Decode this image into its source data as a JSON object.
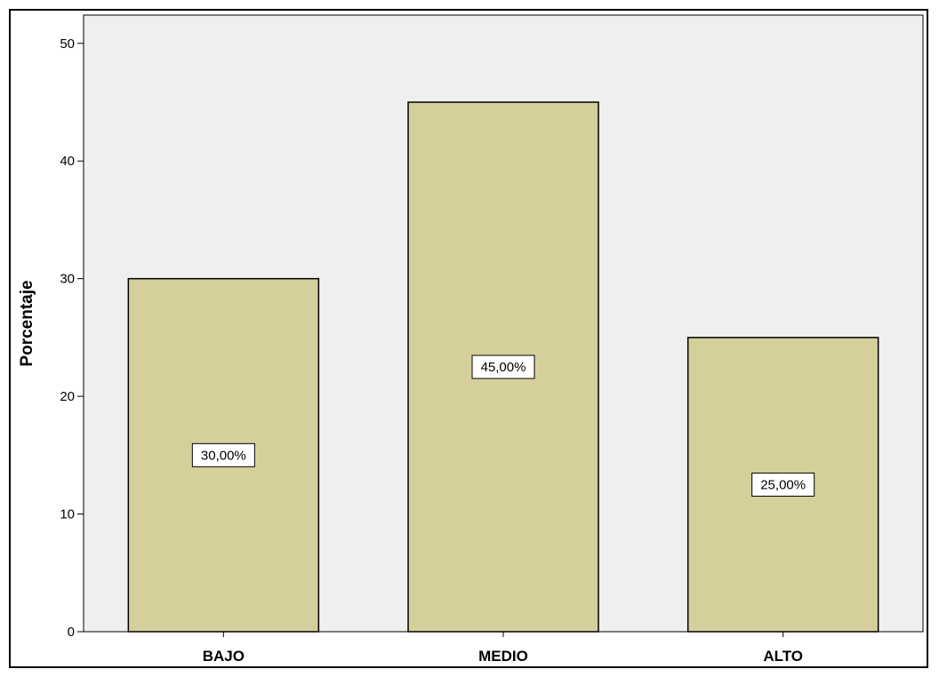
{
  "chart_data": {
    "type": "bar",
    "title": "",
    "xlabel": "",
    "ylabel": "Porcentaje",
    "categories": [
      "BAJO",
      "MEDIO",
      "ALTO"
    ],
    "values": [
      30,
      45,
      25
    ],
    "data_labels": [
      "30,00%",
      "45,00%",
      "25,00%"
    ],
    "ylim": [
      0,
      50
    ],
    "yticks": [
      0,
      10,
      20,
      30,
      40,
      50
    ],
    "ytick_labels": [
      "0",
      "10",
      "20",
      "30",
      "40",
      "50"
    ],
    "grid": false,
    "legend": "none",
    "colors": {
      "bar_fill": "#d5cf9b",
      "bar_stroke": "#000000",
      "plot_background": "#efefef",
      "label_box_fill": "#ffffff"
    }
  }
}
